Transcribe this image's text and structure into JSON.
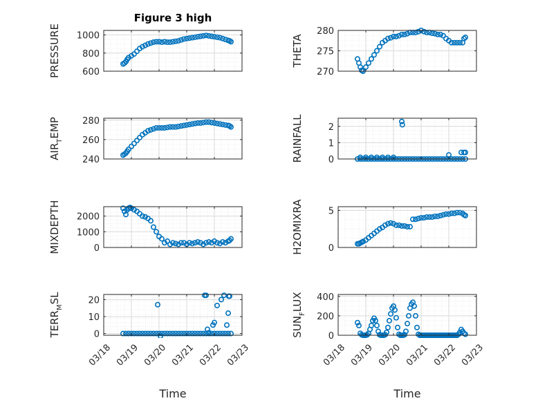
{
  "figure_title": "Figure 3 high",
  "colors": {
    "marker": "#0072BD",
    "axis": "#262626",
    "grid": "#d9d9d9"
  },
  "chart_data": [
    {
      "type": "scatter",
      "title": "Figure 3 high",
      "ylabel": "PRESSURE",
      "ylim": [
        600,
        1050
      ],
      "yticks": [
        600,
        800,
        1000
      ],
      "ytick_labels": [
        "600",
        "800",
        "1000"
      ],
      "xlim": [
        0,
        5
      ],
      "xticks": [
        0,
        1,
        2,
        3,
        4,
        5
      ],
      "x": [
        0.7,
        0.75,
        0.8,
        0.85,
        0.9,
        1.0,
        1.1,
        1.2,
        1.3,
        1.4,
        1.5,
        1.6,
        1.7,
        1.8,
        1.9,
        2.0,
        2.1,
        2.2,
        2.3,
        2.4,
        2.5,
        2.6,
        2.7,
        2.8,
        2.9,
        3.0,
        3.1,
        3.2,
        3.3,
        3.4,
        3.5,
        3.6,
        3.7,
        3.8,
        3.9,
        4.0,
        4.1,
        4.2,
        4.3,
        4.4,
        4.5,
        4.55,
        4.6
      ],
      "y": [
        680,
        690,
        705,
        730,
        750,
        770,
        790,
        820,
        850,
        870,
        885,
        900,
        910,
        920,
        925,
        925,
        920,
        925,
        920,
        920,
        925,
        930,
        935,
        945,
        955,
        960,
        965,
        970,
        975,
        980,
        985,
        990,
        995,
        990,
        985,
        980,
        975,
        970,
        960,
        950,
        940,
        935,
        925
      ]
    },
    {
      "type": "scatter",
      "ylabel": "THETA",
      "ylim": [
        270,
        280
      ],
      "yticks": [
        270,
        275,
        280
      ],
      "ytick_labels": [
        "270",
        "275",
        "280"
      ],
      "xlim": [
        0,
        5
      ],
      "xticks": [
        0,
        1,
        2,
        3,
        4,
        5
      ],
      "x": [
        0.7,
        0.75,
        0.8,
        0.85,
        0.9,
        1.0,
        1.1,
        1.2,
        1.3,
        1.4,
        1.5,
        1.6,
        1.7,
        1.8,
        1.9,
        2.0,
        2.1,
        2.2,
        2.3,
        2.4,
        2.5,
        2.6,
        2.7,
        2.8,
        2.9,
        3.0,
        3.1,
        3.2,
        3.3,
        3.4,
        3.5,
        3.6,
        3.7,
        3.8,
        3.9,
        4.0,
        4.1,
        4.2,
        4.3,
        4.4,
        4.5,
        4.55,
        4.6
      ],
      "y": [
        273,
        272,
        271,
        270.2,
        270,
        271,
        272,
        273,
        274,
        275,
        276,
        277,
        277.5,
        278,
        278.2,
        278.5,
        278.5,
        278.7,
        279,
        279,
        279.2,
        279.5,
        279.5,
        279.5,
        279.7,
        280,
        279.7,
        279.5,
        279.5,
        279.3,
        279.2,
        279,
        279,
        278.7,
        278,
        277.5,
        277,
        277,
        277,
        277,
        277,
        278,
        278.3
      ]
    },
    {
      "type": "scatter",
      "ylabel": "AIR_TEMP",
      "ylim": [
        240,
        282
      ],
      "yticks": [
        240,
        260,
        280
      ],
      "ytick_labels": [
        "240",
        "260",
        "280"
      ],
      "xlim": [
        0,
        5
      ],
      "xticks": [
        0,
        1,
        2,
        3,
        4,
        5
      ],
      "x": [
        0.7,
        0.75,
        0.8,
        0.85,
        0.9,
        1.0,
        1.1,
        1.2,
        1.3,
        1.4,
        1.5,
        1.6,
        1.7,
        1.8,
        1.9,
        2.0,
        2.1,
        2.2,
        2.3,
        2.4,
        2.5,
        2.6,
        2.7,
        2.8,
        2.9,
        3.0,
        3.1,
        3.2,
        3.3,
        3.4,
        3.5,
        3.6,
        3.7,
        3.8,
        3.9,
        4.0,
        4.1,
        4.2,
        4.3,
        4.4,
        4.5,
        4.55,
        4.6
      ],
      "y": [
        244,
        245,
        246,
        248,
        250,
        253,
        256,
        259,
        262,
        265,
        267,
        269,
        270,
        271,
        272,
        272,
        272,
        272,
        272.5,
        273,
        273,
        273,
        273.5,
        274,
        274.5,
        275,
        275.5,
        276,
        276.5,
        277,
        277,
        277.5,
        278,
        278,
        277.5,
        277,
        276.5,
        276,
        275.5,
        275,
        274.5,
        274,
        273
      ]
    },
    {
      "type": "scatter",
      "ylabel": "RAINFALL",
      "ylim": [
        0,
        2.5
      ],
      "yticks": [
        0,
        1,
        2
      ],
      "ytick_labels": [
        "0",
        "1",
        "2"
      ],
      "xlim": [
        0,
        5
      ],
      "xticks": [
        0,
        1,
        2,
        3,
        4,
        5
      ],
      "x": [
        0.7,
        0.8,
        0.9,
        1.0,
        1.1,
        1.2,
        1.3,
        1.4,
        1.5,
        1.6,
        1.7,
        1.8,
        1.9,
        2.0,
        2.1,
        2.2,
        2.3,
        2.4,
        2.5,
        2.6,
        2.7,
        2.8,
        2.9,
        3.0,
        3.1,
        3.2,
        3.3,
        3.4,
        3.5,
        3.6,
        3.7,
        3.8,
        3.9,
        4.0,
        4.1,
        4.2,
        4.3,
        4.4,
        4.5,
        4.6,
        0.8,
        1.0,
        1.2,
        1.4,
        1.6,
        1.8,
        2.0,
        2.3,
        2.32,
        4.0,
        4.45,
        4.55,
        4.6
      ],
      "y": [
        0,
        0,
        0,
        0,
        0,
        0,
        0,
        0,
        0,
        0,
        0,
        0,
        0,
        0,
        0,
        0,
        0,
        0,
        0,
        0,
        0,
        0,
        0,
        0,
        0,
        0,
        0,
        0,
        0,
        0,
        0,
        0,
        0,
        0,
        0,
        0,
        0,
        0,
        0,
        0,
        0.1,
        0.1,
        0.1,
        0.1,
        0.1,
        0.1,
        0.1,
        2.3,
        2.1,
        0.25,
        0.4,
        0.4,
        0.4
      ]
    },
    {
      "type": "scatter",
      "ylabel": "MIXDEPTH",
      "ylim": [
        0,
        2600
      ],
      "yticks": [
        0,
        1000,
        2000
      ],
      "ytick_labels": [
        "0",
        "1000",
        "2000"
      ],
      "xlim": [
        0,
        5
      ],
      "xticks": [
        0,
        1,
        2,
        3,
        4,
        5
      ],
      "x": [
        0.7,
        0.75,
        0.8,
        0.85,
        0.9,
        0.95,
        1.0,
        1.1,
        1.2,
        1.3,
        1.4,
        1.5,
        1.6,
        1.7,
        1.8,
        1.9,
        2.0,
        2.1,
        2.2,
        2.3,
        2.4,
        2.5,
        2.6,
        2.7,
        2.8,
        2.9,
        3.0,
        3.1,
        3.2,
        3.3,
        3.4,
        3.5,
        3.6,
        3.7,
        3.8,
        3.9,
        4.0,
        4.1,
        4.2,
        4.3,
        4.4,
        4.5,
        4.55,
        4.6
      ],
      "y": [
        2500,
        2300,
        2100,
        2400,
        2500,
        2550,
        2500,
        2400,
        2300,
        2150,
        2000,
        1950,
        1850,
        1700,
        1300,
        1000,
        700,
        550,
        300,
        400,
        200,
        300,
        250,
        200,
        300,
        300,
        200,
        300,
        250,
        300,
        350,
        300,
        200,
        300,
        350,
        300,
        400,
        300,
        250,
        350,
        300,
        400,
        450,
        550
      ]
    },
    {
      "type": "scatter",
      "ylabel": "H2OMIXRA",
      "ylim": [
        0,
        5.5
      ],
      "yticks": [
        0,
        5
      ],
      "ytick_labels": [
        "0",
        "5"
      ],
      "xlim": [
        0,
        5
      ],
      "xticks": [
        0,
        1,
        2,
        3,
        4,
        5
      ],
      "x": [
        0.7,
        0.75,
        0.8,
        0.85,
        0.9,
        1.0,
        1.1,
        1.2,
        1.3,
        1.4,
        1.5,
        1.6,
        1.7,
        1.8,
        1.9,
        2.0,
        2.1,
        2.2,
        2.3,
        2.4,
        2.5,
        2.6,
        2.7,
        2.8,
        2.9,
        3.0,
        3.1,
        3.2,
        3.3,
        3.4,
        3.5,
        3.6,
        3.7,
        3.8,
        3.9,
        4.0,
        4.1,
        4.2,
        4.3,
        4.4,
        4.5,
        4.55,
        4.6
      ],
      "y": [
        0.5,
        0.5,
        0.6,
        0.7,
        0.8,
        1.0,
        1.3,
        1.6,
        1.9,
        2.2,
        2.5,
        2.7,
        3.0,
        3.2,
        3.3,
        3.2,
        3.0,
        3.0,
        2.9,
        2.9,
        2.8,
        2.8,
        3.8,
        3.8,
        3.9,
        4.0,
        4.0,
        4.1,
        4.1,
        4.1,
        4.2,
        4.2,
        4.3,
        4.4,
        4.5,
        4.5,
        4.6,
        4.6,
        4.7,
        4.7,
        4.6,
        4.4,
        4.3
      ]
    },
    {
      "type": "scatter",
      "ylabel": "TERR_MSL",
      "ylim": [
        -1,
        23
      ],
      "yticks": [
        0,
        10,
        20
      ],
      "ytick_labels": [
        "0",
        "10",
        "20"
      ],
      "xlim": [
        0,
        5
      ],
      "xticks": [
        0,
        1,
        2,
        3,
        4,
        5
      ],
      "xtick_labels": [
        "03/18",
        "03/19",
        "03/20",
        "03/21",
        "03/22",
        "03/23"
      ],
      "xlabel": "Time",
      "x": [
        0.7,
        0.8,
        0.9,
        1.0,
        1.1,
        1.2,
        1.3,
        1.4,
        1.5,
        1.6,
        1.7,
        1.8,
        1.9,
        2.0,
        2.1,
        2.2,
        2.3,
        2.4,
        2.5,
        2.6,
        2.7,
        2.8,
        2.9,
        3.0,
        3.1,
        3.2,
        3.3,
        3.4,
        3.5,
        3.6,
        3.7,
        3.8,
        3.9,
        4.0,
        4.1,
        4.2,
        4.3,
        4.4,
        4.5,
        4.6,
        1.95,
        2.05,
        3.65,
        3.7,
        3.75,
        3.95,
        4.0,
        4.1,
        4.25,
        4.35,
        4.45,
        4.5,
        4.52,
        4.55,
        3.8
      ],
      "y": [
        0,
        0,
        0,
        0,
        0,
        0,
        0,
        0,
        0,
        0,
        0,
        0,
        0,
        0,
        0,
        0,
        0,
        0,
        0,
        0,
        0,
        0,
        0,
        0,
        0,
        0,
        0,
        0,
        0,
        0,
        0,
        0,
        0,
        0,
        0,
        0,
        0,
        0,
        0,
        0,
        17,
        -1.5,
        22.5,
        22.5,
        2.5,
        5,
        6.5,
        16.5,
        20,
        22.5,
        5,
        12,
        22,
        22,
        0.5
      ]
    },
    {
      "type": "scatter",
      "ylabel": "SUN_FLUX",
      "ylim": [
        0,
        420
      ],
      "yticks": [
        0,
        200,
        400
      ],
      "ytick_labels": [
        "0",
        "200",
        "400"
      ],
      "xlim": [
        0,
        5
      ],
      "xticks": [
        0,
        1,
        2,
        3,
        4,
        5
      ],
      "xtick_labels": [
        "03/18",
        "03/19",
        "03/20",
        "03/21",
        "03/22",
        "03/23"
      ],
      "xlabel": "Time",
      "x": [
        0.7,
        0.75,
        0.8,
        0.85,
        0.9,
        0.95,
        1.0,
        1.05,
        1.1,
        1.15,
        1.2,
        1.25,
        1.3,
        1.35,
        1.4,
        1.45,
        1.5,
        1.55,
        1.6,
        1.65,
        1.7,
        1.75,
        1.8,
        1.85,
        1.9,
        1.95,
        2.0,
        2.05,
        2.1,
        2.15,
        2.2,
        2.25,
        2.3,
        2.35,
        2.4,
        2.45,
        2.5,
        2.55,
        2.6,
        2.65,
        2.7,
        2.75,
        2.8,
        2.85,
        2.9,
        2.95,
        3.0,
        3.05,
        3.1,
        3.15,
        3.2,
        3.25,
        3.3,
        3.35,
        3.4,
        3.45,
        3.5,
        3.55,
        3.6,
        3.65,
        3.7,
        3.75,
        3.8,
        3.85,
        3.9,
        3.95,
        4.0,
        4.05,
        4.1,
        4.15,
        4.2,
        4.25,
        4.3,
        4.35,
        4.4,
        4.45,
        4.5,
        4.55,
        4.6
      ],
      "y": [
        130,
        100,
        20,
        5,
        0,
        0,
        0,
        5,
        20,
        60,
        100,
        150,
        175,
        150,
        100,
        40,
        5,
        0,
        0,
        0,
        5,
        30,
        80,
        150,
        220,
        280,
        300,
        260,
        180,
        80,
        10,
        0,
        0,
        0,
        5,
        40,
        120,
        200,
        280,
        320,
        340,
        300,
        200,
        80,
        10,
        0,
        0,
        0,
        0,
        0,
        0,
        0,
        0,
        0,
        0,
        0,
        0,
        0,
        0,
        0,
        0,
        0,
        0,
        0,
        0,
        0,
        0,
        0,
        0,
        0,
        0,
        0,
        0,
        10,
        30,
        60,
        40,
        20,
        10
      ]
    }
  ]
}
